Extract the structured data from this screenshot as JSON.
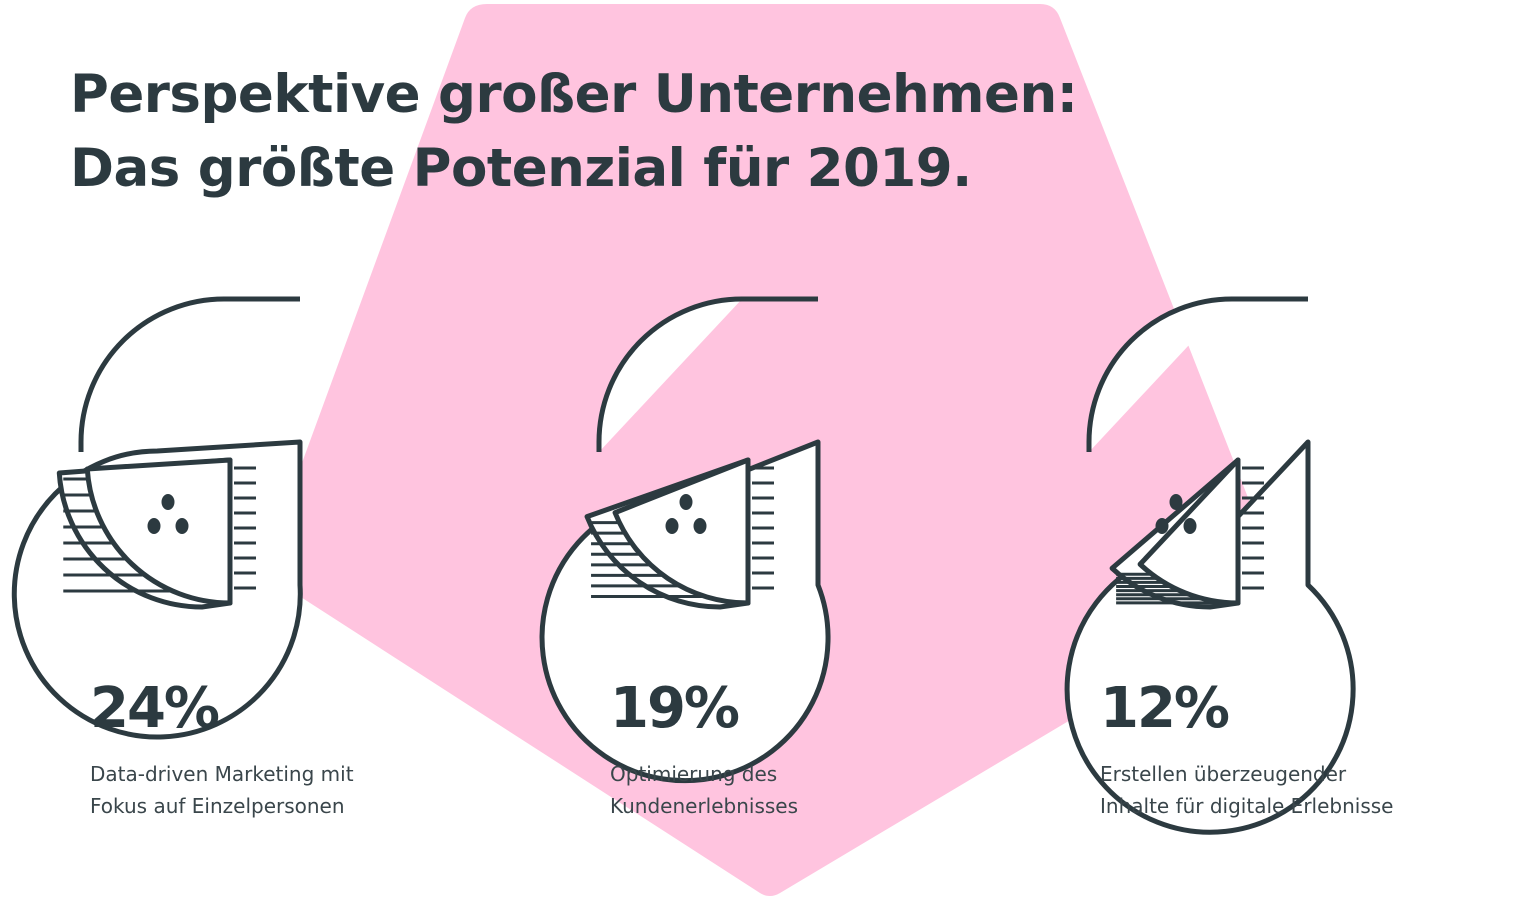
{
  "title": {
    "line1": "Perspektive großer Unternehmen:",
    "line2": "Das größte Potenzial für 2019."
  },
  "colors": {
    "background": "#ffffff",
    "accent": "#ffc4df",
    "ink": "#2c3a40"
  },
  "chart_data": {
    "type": "pie",
    "title": "Perspektive großer Unternehmen: Das größte Potenzial für 2019.",
    "items": [
      {
        "value": 24,
        "value_label": "24%",
        "label_line1": "Data-driven Marketing mit",
        "label_line2": "Fokus auf Einzelpersonen"
      },
      {
        "value": 19,
        "value_label": "19%",
        "label_line1": "Optimierung des",
        "label_line2": "Kundenerlebnisses"
      },
      {
        "value": 12,
        "value_label": "12%",
        "label_line1": "Erstellen überzeugender",
        "label_line2": "Inhalte für digitale Erlebnisse"
      }
    ]
  }
}
